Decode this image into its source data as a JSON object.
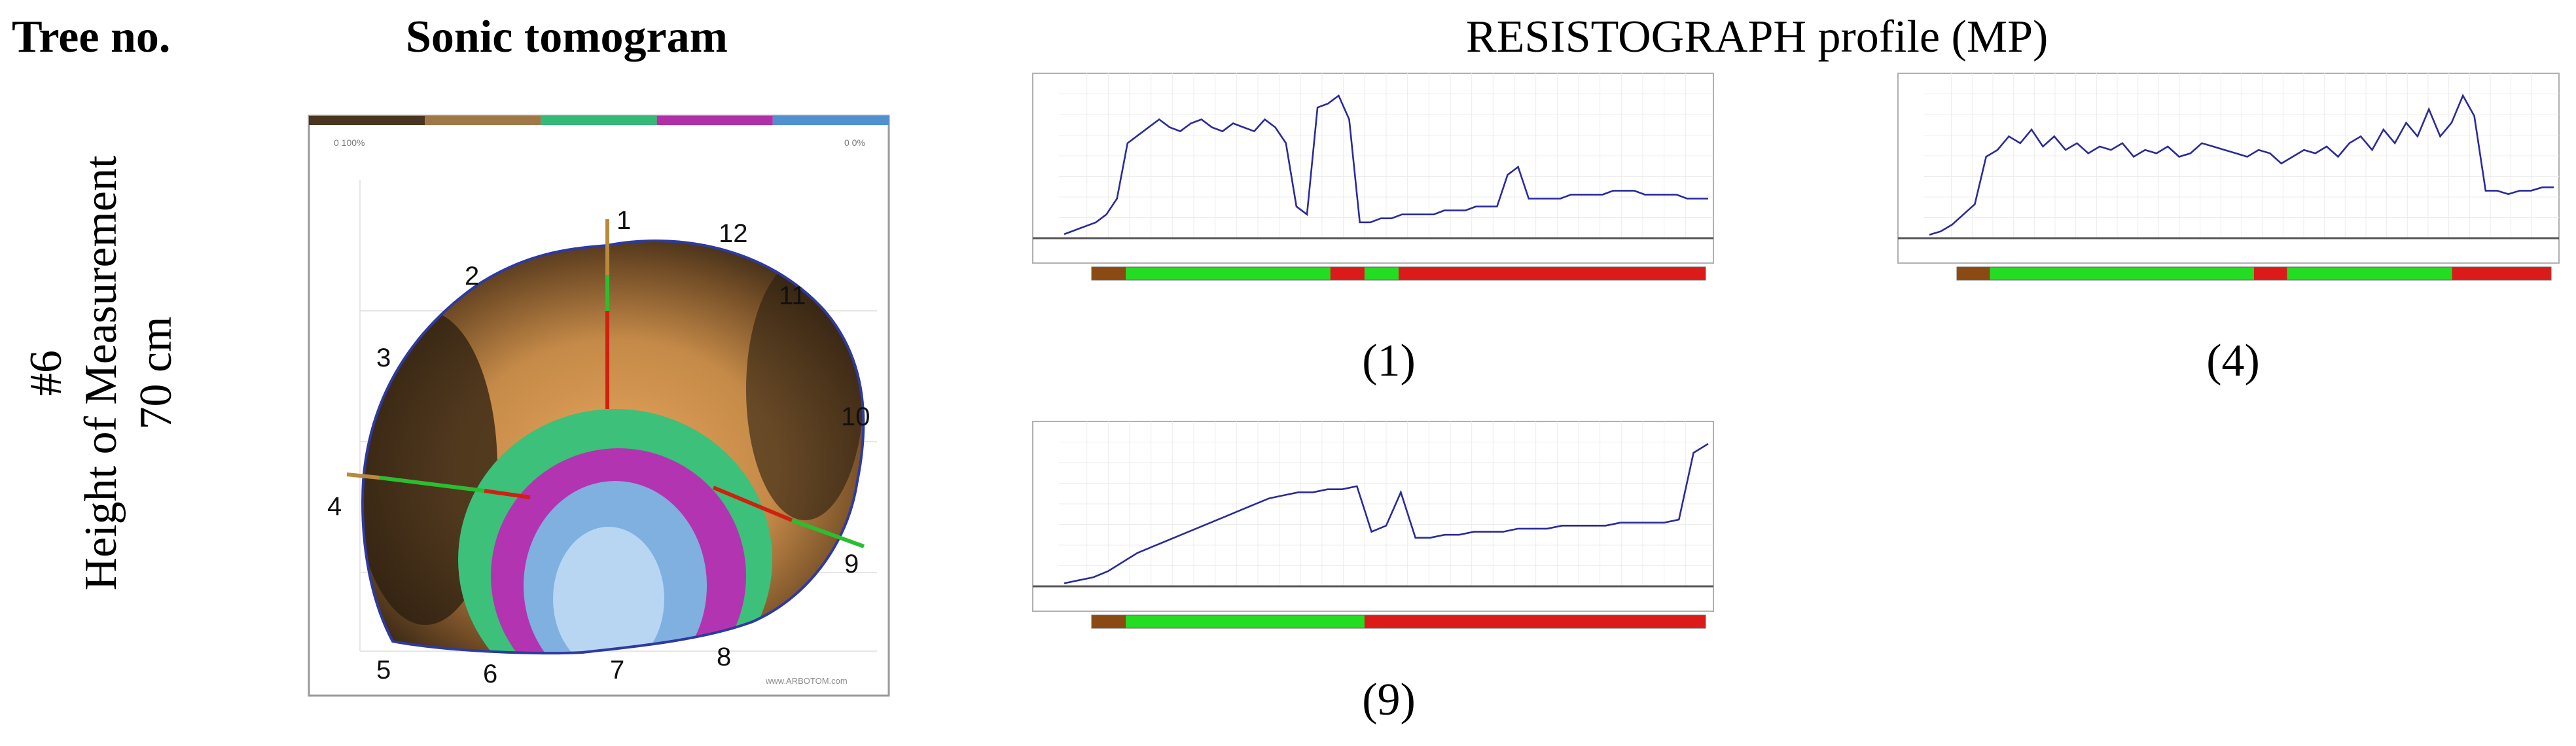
{
  "header": {
    "tree_no": "Tree no.",
    "sonic": "Sonic tomogram",
    "resisto": "RESISTOGRAPH profile (MP)"
  },
  "row": {
    "tree_id": "#6",
    "height_label": "Height of Measurement",
    "height_value": "70 cm"
  },
  "tomogram": {
    "points": [
      "1",
      "2",
      "3",
      "4",
      "5",
      "6",
      "7",
      "8",
      "9",
      "10",
      "11",
      "12"
    ],
    "legend_left": "0 100%",
    "legend_right": "0 0%",
    "watermark": "www.ARBOTOM.com",
    "palette": [
      "#4a3520",
      "#a07848",
      "#35b878",
      "#b030a8",
      "#5090d0"
    ]
  },
  "profiles": [
    {
      "caption": "(1)",
      "series": [
        1,
        2,
        3,
        4,
        6,
        10,
        24,
        26,
        28,
        30,
        28,
        27,
        29,
        30,
        28,
        27,
        29,
        28,
        27,
        30,
        28,
        24,
        8,
        6,
        33,
        34,
        36,
        30,
        4,
        4,
        5,
        5,
        6,
        6,
        6,
        6,
        7,
        7,
        7,
        8,
        8,
        8,
        16,
        18,
        10,
        10,
        10,
        10,
        11,
        11,
        11,
        11,
        12,
        12,
        12,
        11,
        11,
        11,
        11,
        10,
        10,
        10
      ]
    },
    {
      "caption": "(4)",
      "series": [
        1,
        2,
        4,
        7,
        10,
        24,
        26,
        30,
        28,
        32,
        27,
        30,
        26,
        28,
        25,
        27,
        26,
        28,
        24,
        26,
        25,
        27,
        24,
        25,
        28,
        27,
        26,
        25,
        24,
        26,
        25,
        22,
        24,
        26,
        25,
        27,
        24,
        28,
        30,
        26,
        32,
        28,
        34,
        30,
        38,
        30,
        34,
        42,
        36,
        14,
        14,
        13,
        14,
        14,
        15,
        15
      ]
    },
    {
      "caption": "(9)",
      "series": [
        1,
        2,
        3,
        5,
        8,
        11,
        13,
        15,
        17,
        19,
        21,
        23,
        25,
        27,
        29,
        30,
        31,
        31,
        32,
        32,
        33,
        18,
        20,
        31,
        16,
        16,
        17,
        17,
        18,
        18,
        18,
        19,
        19,
        19,
        20,
        20,
        20,
        20,
        21,
        21,
        21,
        21,
        22,
        44,
        47
      ]
    }
  ]
}
